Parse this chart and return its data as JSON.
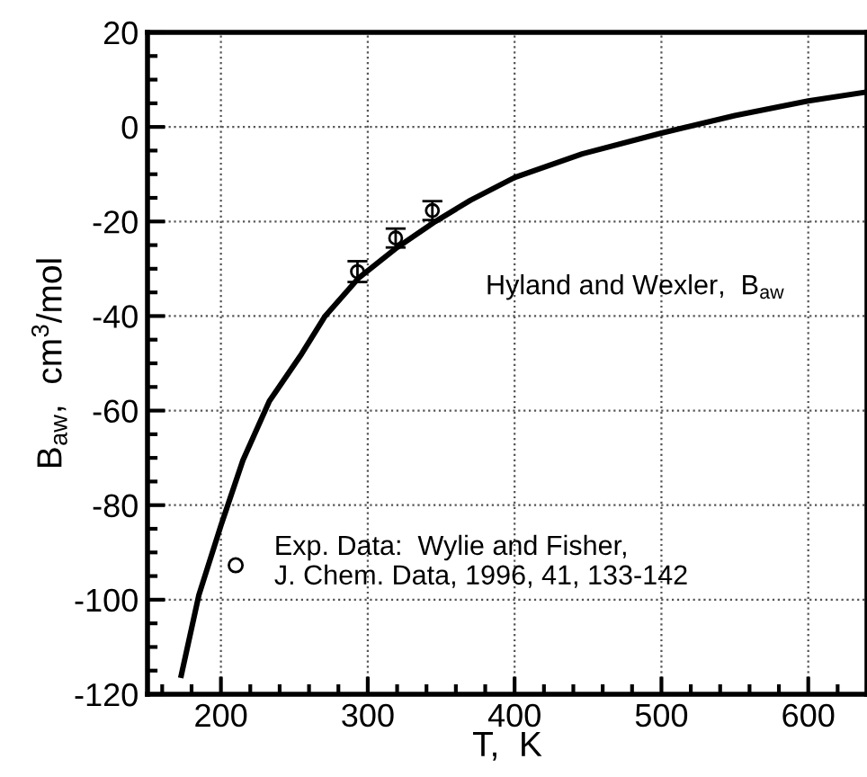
{
  "chart_data": {
    "type": "line",
    "xlabel": "T,  K",
    "ylabel": "B$_{aw}$,  cm$^{3}$/mol",
    "xlim": [
      150,
      640
    ],
    "ylim": [
      -120,
      20
    ],
    "xticks": [
      200,
      300,
      400,
      500,
      600
    ],
    "yticks": [
      -120,
      -100,
      -80,
      -60,
      -40,
      -20,
      0,
      20
    ],
    "grid": true,
    "legend": "bottom",
    "series": [
      {
        "name": "Hyland and Wexler,  B$_{aw}$",
        "type": "line",
        "color": "#000000",
        "line_style": "solid",
        "marker": "none",
        "x": [
          173,
          185,
          200,
          215,
          233,
          255,
          271,
          294,
          320,
          346,
          370,
          400,
          446,
          500,
          550,
          600,
          640
        ],
        "values": [
          -116,
          -99,
          -84.3,
          -70.5,
          -58,
          -48,
          -40,
          -31.9,
          -25.5,
          -20,
          -15.5,
          -10.7,
          -5.7,
          -1.3,
          2.4,
          5.5,
          7.4
        ]
      },
      {
        "name": "Exp. Data:  Wylie and Fisher,\nJ. Chem. Data, 1996, 41, 133-142",
        "type": "scatter",
        "color": "#000000",
        "marker": "circle",
        "x": [
          293,
          319,
          344
        ],
        "values": [
          -30.6,
          -23.5,
          -17.7
        ],
        "errors": [
          2.2,
          2,
          2
        ]
      }
    ]
  }
}
